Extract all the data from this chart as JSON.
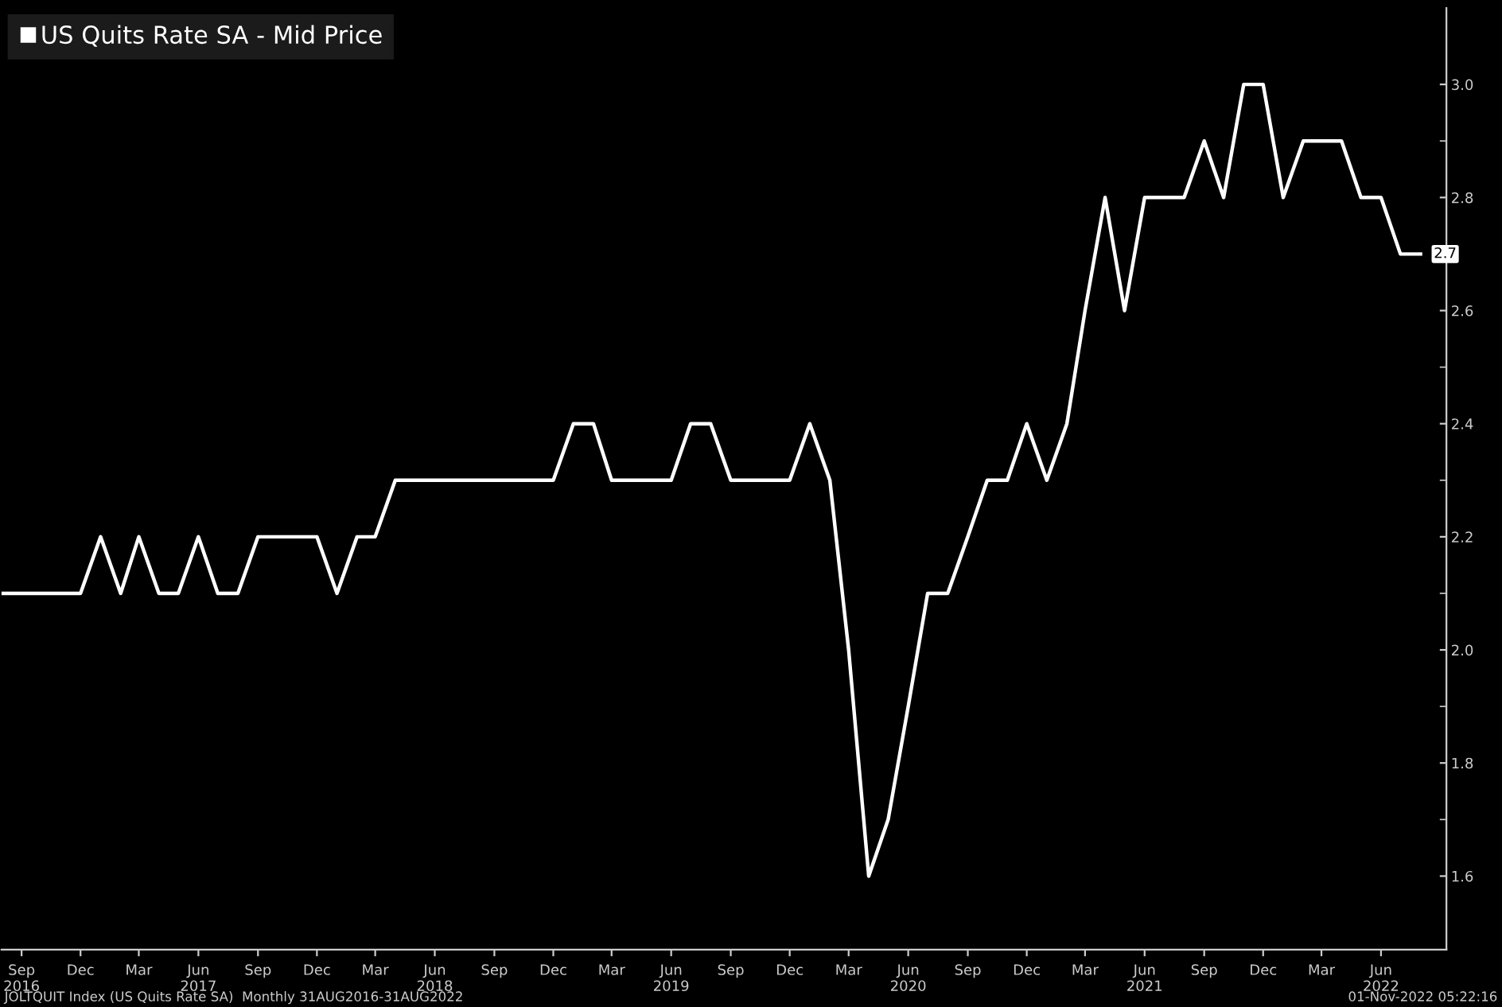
{
  "chart_data": {
    "type": "line",
    "x": [
      "2016-08",
      "2016-09",
      "2016-10",
      "2016-11",
      "2016-12",
      "2017-01",
      "2017-02",
      "2017-03",
      "2017-04",
      "2017-05",
      "2017-06",
      "2017-07",
      "2017-08",
      "2017-09",
      "2017-10",
      "2017-11",
      "2017-12",
      "2018-01",
      "2018-02",
      "2018-03",
      "2018-04",
      "2018-05",
      "2018-06",
      "2018-07",
      "2018-08",
      "2018-09",
      "2018-10",
      "2018-11",
      "2018-12",
      "2019-01",
      "2019-02",
      "2019-03",
      "2019-04",
      "2019-05",
      "2019-06",
      "2019-07",
      "2019-08",
      "2019-09",
      "2019-10",
      "2019-11",
      "2019-12",
      "2020-01",
      "2020-02",
      "2020-03",
      "2020-04",
      "2020-05",
      "2020-06",
      "2020-07",
      "2020-08",
      "2020-09",
      "2020-10",
      "2020-11",
      "2020-12",
      "2021-01",
      "2021-02",
      "2021-03",
      "2021-04",
      "2021-05",
      "2021-06",
      "2021-07",
      "2021-08",
      "2021-09",
      "2021-10",
      "2021-11",
      "2021-12",
      "2022-01",
      "2022-02",
      "2022-03",
      "2022-04",
      "2022-05",
      "2022-06",
      "2022-07",
      "2022-08"
    ],
    "series": [
      {
        "name": "US Quits Rate SA - Mid Price",
        "color": "#ffffff",
        "values": [
          2.1,
          2.1,
          2.1,
          2.1,
          2.1,
          2.2,
          2.1,
          2.2,
          2.1,
          2.1,
          2.2,
          2.1,
          2.1,
          2.2,
          2.2,
          2.2,
          2.2,
          2.1,
          2.2,
          2.2,
          2.3,
          2.3,
          2.3,
          2.3,
          2.3,
          2.3,
          2.3,
          2.3,
          2.3,
          2.4,
          2.4,
          2.3,
          2.3,
          2.3,
          2.3,
          2.4,
          2.4,
          2.3,
          2.3,
          2.3,
          2.3,
          2.4,
          2.3,
          2.0,
          1.6,
          1.7,
          1.9,
          2.1,
          2.1,
          2.2,
          2.3,
          2.3,
          2.4,
          2.3,
          2.4,
          2.6,
          2.8,
          2.6,
          2.8,
          2.8,
          2.8,
          2.9,
          2.8,
          3.0,
          3.0,
          2.8,
          2.9,
          2.9,
          2.9,
          2.8,
          2.8,
          2.7,
          2.7
        ]
      }
    ],
    "xlim": [
      "2016-08",
      "2022-09-10"
    ],
    "xticks": [
      {
        "value": "2016-09",
        "label": "Sep\n2016"
      },
      {
        "value": "2016-12",
        "label": "Dec"
      },
      {
        "value": "2017-03",
        "label": "Mar"
      },
      {
        "value": "2017-06",
        "label": "Jun\n2017"
      },
      {
        "value": "2017-09",
        "label": "Sep"
      },
      {
        "value": "2017-12",
        "label": "Dec"
      },
      {
        "value": "2018-03",
        "label": "Mar"
      },
      {
        "value": "2018-06",
        "label": "Jun\n2018"
      },
      {
        "value": "2018-09",
        "label": "Sep"
      },
      {
        "value": "2018-12",
        "label": "Dec"
      },
      {
        "value": "2019-03",
        "label": "Mar"
      },
      {
        "value": "2019-06",
        "label": "Jun\n2019"
      },
      {
        "value": "2019-09",
        "label": "Sep"
      },
      {
        "value": "2019-12",
        "label": "Dec"
      },
      {
        "value": "2020-03",
        "label": "Mar"
      },
      {
        "value": "2020-06",
        "label": "Jun\n2020"
      },
      {
        "value": "2020-09",
        "label": "Sep"
      },
      {
        "value": "2020-12",
        "label": "Dec"
      },
      {
        "value": "2021-03",
        "label": "Mar"
      },
      {
        "value": "2021-06",
        "label": "Jun\n2021"
      },
      {
        "value": "2021-09",
        "label": "Sep"
      },
      {
        "value": "2021-12",
        "label": "Dec"
      },
      {
        "value": "2022-03",
        "label": "Mar"
      },
      {
        "value": "2022-06",
        "label": "Jun\n2022"
      }
    ],
    "ylim": [
      1.47,
      3.135
    ],
    "yticks": [
      1.6,
      1.8,
      {
        "value": 2,
        "label": "2.0"
      },
      2.2,
      2.4,
      2.6,
      2.8,
      {
        "value": 3,
        "label": "3.0"
      }
    ],
    "legend": "top left",
    "grid": false,
    "annotations": [
      {
        "text": "2.7",
        "x": "2022-08",
        "y": 2.7
      },
      "JOLTQUIT Index (US Quits Rate SA)  Monthly 31AUG2016-31AUG2022",
      "01-Nov-2022 05:22:16"
    ]
  }
}
